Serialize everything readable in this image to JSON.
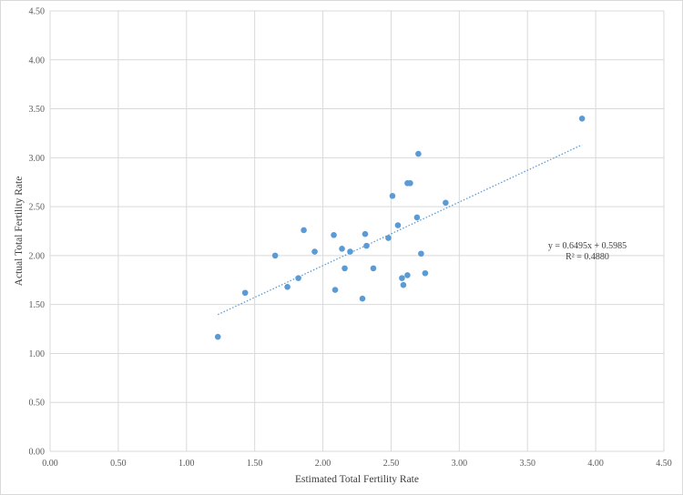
{
  "chart_data": {
    "type": "scatter",
    "xlabel": "Estimated Total Fertility Rate",
    "ylabel": "Actual Total Fertility Rate",
    "xlim": [
      0,
      4.5
    ],
    "ylim": [
      0,
      4.5
    ],
    "x_ticks": [
      "0.00",
      "0.50",
      "1.00",
      "1.50",
      "2.00",
      "2.50",
      "3.00",
      "3.50",
      "4.00",
      "4.50"
    ],
    "y_ticks": [
      "0.00",
      "0.50",
      "1.00",
      "1.50",
      "2.00",
      "2.50",
      "3.00",
      "3.50",
      "4.00",
      "4.50"
    ],
    "grid": true,
    "point_color": "#5b9bd5",
    "trendline_color": "#5b9bd5",
    "points": [
      {
        "x": 1.23,
        "y": 1.17
      },
      {
        "x": 1.43,
        "y": 1.62
      },
      {
        "x": 1.65,
        "y": 2.0
      },
      {
        "x": 1.74,
        "y": 1.68
      },
      {
        "x": 1.82,
        "y": 1.77
      },
      {
        "x": 1.86,
        "y": 2.26
      },
      {
        "x": 1.94,
        "y": 2.04
      },
      {
        "x": 2.08,
        "y": 2.21
      },
      {
        "x": 2.09,
        "y": 1.65
      },
      {
        "x": 2.14,
        "y": 2.07
      },
      {
        "x": 2.16,
        "y": 1.87
      },
      {
        "x": 2.2,
        "y": 2.04
      },
      {
        "x": 2.29,
        "y": 1.56
      },
      {
        "x": 2.31,
        "y": 2.22
      },
      {
        "x": 2.32,
        "y": 2.1
      },
      {
        "x": 2.37,
        "y": 1.87
      },
      {
        "x": 2.48,
        "y": 2.18
      },
      {
        "x": 2.51,
        "y": 2.61
      },
      {
        "x": 2.55,
        "y": 2.31
      },
      {
        "x": 2.58,
        "y": 1.77
      },
      {
        "x": 2.59,
        "y": 1.7
      },
      {
        "x": 2.62,
        "y": 1.8
      },
      {
        "x": 2.62,
        "y": 2.74
      },
      {
        "x": 2.64,
        "y": 2.74
      },
      {
        "x": 2.69,
        "y": 2.39
      },
      {
        "x": 2.7,
        "y": 3.04
      },
      {
        "x": 2.72,
        "y": 2.02
      },
      {
        "x": 2.75,
        "y": 1.82
      },
      {
        "x": 2.9,
        "y": 2.54
      },
      {
        "x": 3.9,
        "y": 3.4
      }
    ],
    "trendline": {
      "type": "linear",
      "slope": 0.6495,
      "intercept": 0.5985,
      "x_range": [
        1.23,
        3.9
      ],
      "equation": "y = 0.6495x + 0.5985",
      "r_squared": "R² = 0.4880"
    }
  }
}
